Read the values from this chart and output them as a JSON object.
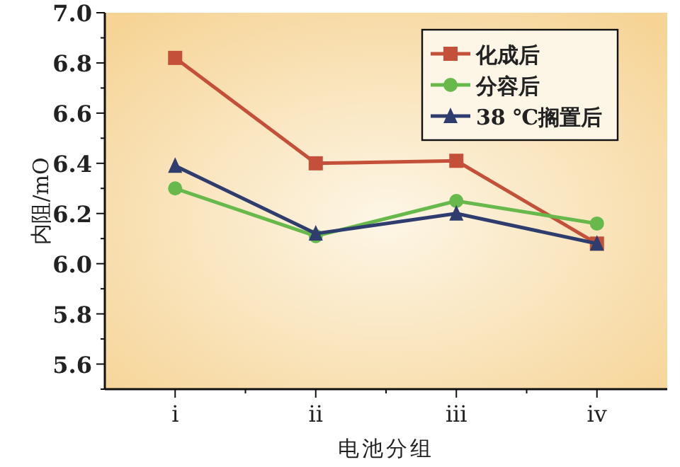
{
  "chart_data": {
    "type": "line",
    "xlabel": "电池分组",
    "ylabel": "内阻/mO",
    "categories": [
      "i",
      "ii",
      "iii",
      "iv"
    ],
    "ylim": [
      5.5,
      7.0
    ],
    "yticks": [
      {
        "value": 5.5,
        "label": null
      },
      5.6,
      {
        "value": 5.7,
        "label": null
      },
      5.8,
      {
        "value": 5.9,
        "label": null
      },
      {
        "value": 6.0,
        "label": "6.0"
      },
      {
        "value": 6.1,
        "label": null
      },
      6.2,
      {
        "value": 6.3,
        "label": null
      },
      6.4,
      {
        "value": 6.5,
        "label": null
      },
      6.6,
      {
        "value": 6.7,
        "label": null
      },
      6.8,
      {
        "value": 6.9,
        "label": null
      },
      {
        "value": 7.0,
        "label": "7.0"
      }
    ],
    "grid": false,
    "legend": "top right",
    "line_style": "solid",
    "series": [
      {
        "name": "化成后",
        "color": "#c4503a",
        "marker": "square",
        "values": [
          6.82,
          6.4,
          6.41,
          6.08
        ]
      },
      {
        "name": "分容后",
        "color": "#66b94a",
        "marker": "circle",
        "values": [
          6.3,
          6.11,
          6.25,
          6.16
        ]
      },
      {
        "name": "38 ℃搁置后",
        "color": "#2e3d6e",
        "marker": "triangle",
        "values": [
          6.39,
          6.12,
          6.2,
          6.08
        ]
      }
    ]
  }
}
